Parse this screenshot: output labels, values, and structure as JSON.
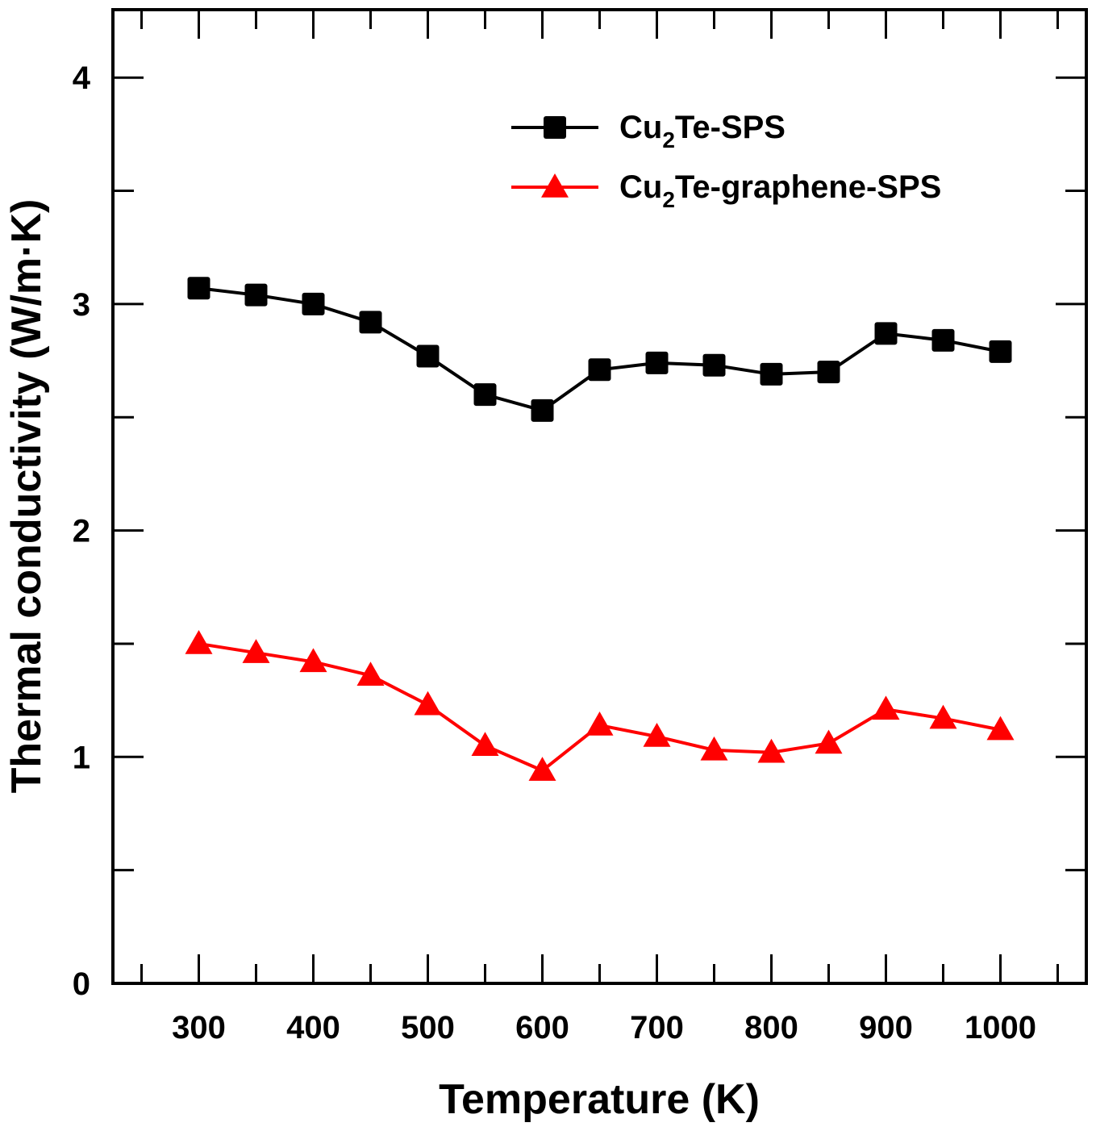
{
  "chart_data": {
    "type": "line",
    "title": "",
    "xlabel": "Temperature (K)",
    "ylabel": "Thermal conductivity (W/m·K)",
    "xlim": [
      225,
      1075
    ],
    "ylim": [
      0,
      4.3
    ],
    "x_ticks": [
      300,
      400,
      500,
      600,
      700,
      800,
      900,
      1000
    ],
    "x_minor_ticks": [
      250,
      350,
      450,
      550,
      650,
      750,
      850,
      950,
      1050
    ],
    "y_ticks": [
      0,
      1,
      2,
      3,
      4
    ],
    "y_minor_ticks": [
      0.5,
      1.5,
      2.5,
      3.5
    ],
    "grid": false,
    "legend_position": "top-right",
    "x": [
      300,
      350,
      400,
      450,
      500,
      550,
      600,
      650,
      700,
      750,
      800,
      850,
      900,
      950,
      1000
    ],
    "series": [
      {
        "name": "Cu2Te-SPS",
        "legend_parts": {
          "base": "Cu",
          "sub": "2",
          "rest": "Te-SPS"
        },
        "color": "#000000",
        "marker": "square",
        "values": [
          3.07,
          3.04,
          3.0,
          2.92,
          2.77,
          2.6,
          2.53,
          2.71,
          2.74,
          2.73,
          2.69,
          2.7,
          2.87,
          2.84,
          2.79
        ]
      },
      {
        "name": "Cu2Te-graphene-SPS",
        "legend_parts": {
          "base": "Cu",
          "sub": "2",
          "rest": "Te-graphene-SPS"
        },
        "color": "#ff0000",
        "marker": "triangle",
        "values": [
          1.5,
          1.46,
          1.42,
          1.36,
          1.23,
          1.05,
          0.94,
          1.14,
          1.09,
          1.03,
          1.02,
          1.06,
          1.21,
          1.17,
          1.12
        ]
      }
    ]
  }
}
